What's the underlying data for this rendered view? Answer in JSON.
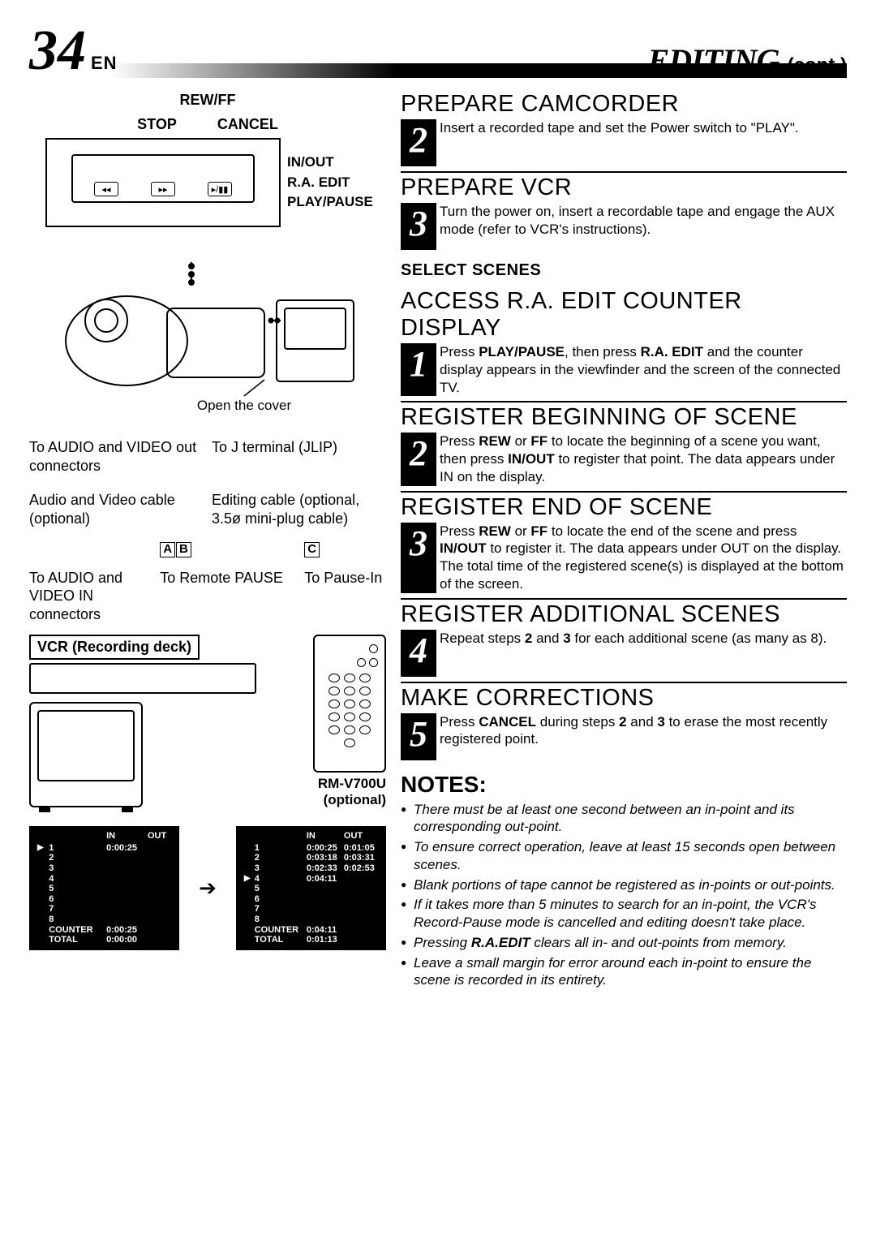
{
  "header": {
    "page_num": "34",
    "lang": "EN",
    "title": "EDITING",
    "cont": "(cont.)"
  },
  "remote": {
    "top_label": "REW/FF",
    "stop": "STOP",
    "cancel": "CANCEL",
    "inout": "IN/OUT",
    "raedit": "R.A. EDIT",
    "playpause": "PLAY/PAUSE"
  },
  "diagram": {
    "open_cover": "Open the cover",
    "audio_video_out": "To AUDIO and VIDEO out connectors",
    "j_terminal": "To J terminal (JLIP)",
    "av_cable": "Audio and Video cable (optional)",
    "editing_cable": "Editing cable (optional, 3.5ø mini-plug cable)",
    "letters": {
      "a": "A",
      "b": "B",
      "c": "C"
    },
    "audio_video_in": "To AUDIO and VIDEO IN connectors",
    "to_remote_pause": "To Remote PAUSE",
    "to_pause_in": "To Pause-In",
    "vcr": "VCR (Recording deck)",
    "rm_model": "RM-V700U",
    "optional": "(optional)"
  },
  "counter_left": {
    "in": "IN",
    "out": "OUT",
    "rows": [
      {
        "n": "1",
        "in": "0:00:25",
        "out": ""
      },
      {
        "n": "2"
      },
      {
        "n": "3"
      },
      {
        "n": "4"
      },
      {
        "n": "5"
      },
      {
        "n": "6"
      },
      {
        "n": "7"
      },
      {
        "n": "8"
      }
    ],
    "counter_label": "COUNTER",
    "counter": "0:00:25",
    "total_label": "TOTAL",
    "total": "0:00:00",
    "pointer_row": 0
  },
  "counter_right": {
    "in": "IN",
    "out": "OUT",
    "rows": [
      {
        "n": "1",
        "in": "0:00:25",
        "out": "0:01:05"
      },
      {
        "n": "2",
        "in": "0:03:18",
        "out": "0:03:31"
      },
      {
        "n": "3",
        "in": "0:02:33",
        "out": "0:02:53"
      },
      {
        "n": "4",
        "in": "0:04:11",
        "out": ""
      },
      {
        "n": "5"
      },
      {
        "n": "6"
      },
      {
        "n": "7"
      },
      {
        "n": "8"
      }
    ],
    "counter_label": "COUNTER",
    "counter": "0:04:11",
    "total_label": "TOTAL",
    "total": "0:01:13",
    "pointer_row": 3
  },
  "steps_a": [
    {
      "n": "2",
      "title": "PREPARE CAMCORDER",
      "text": "Insert a recorded tape and set the Power switch to \"PLAY\"."
    },
    {
      "n": "3",
      "title": "PREPARE VCR",
      "text": "Turn the power on, insert a recordable tape and engage the AUX mode (refer to VCR's instructions)."
    }
  ],
  "select_scenes": "SELECT SCENES",
  "steps_b": [
    {
      "n": "1",
      "title": "ACCESS R.A. EDIT COUNTER DISPLAY",
      "text": "Press <b>PLAY/PAUSE</b>, then press <b>R.A. EDIT</b> and the counter display appears in the viewfinder and the screen of the connected TV."
    },
    {
      "n": "2",
      "title": "REGISTER BEGINNING OF SCENE",
      "text": "Press <b>REW</b> or <b>FF</b> to locate the beginning of a scene you want, then press <b>IN/OUT</b> to register that point. The data appears under IN on the display."
    },
    {
      "n": "3",
      "title": "REGISTER END OF SCENE",
      "text": "Press <b>REW</b> or <b>FF</b> to locate the end of the scene and press <b>IN/OUT</b> to register it. The data appears under OUT on the display. The total time of the registered scene(s) is displayed at the bottom of the screen."
    },
    {
      "n": "4",
      "title": "REGISTER ADDITIONAL SCENES",
      "text": "Repeat steps <b>2</b> and <b>3</b> for each additional scene (as many as 8)."
    },
    {
      "n": "5",
      "title": "MAKE CORRECTIONS",
      "text": "Press <b>CANCEL</b> during steps <b>2</b> and <b>3</b> to erase the most recently registered point."
    }
  ],
  "notes_hd": "NOTES:",
  "notes": [
    "There must be at least one second between an in-point and its corresponding out-point.",
    "To ensure correct operation, leave at least 15 seconds open between scenes.",
    "Blank portions of tape cannot be registered as in-points or out-points.",
    "If it takes more than 5 minutes to search for an in-point, the VCR's Record-Pause mode is cancelled and editing doesn't take place.",
    "Pressing <b>R.A.EDIT</b> clears all in- and out-points from memory.",
    "Leave a small margin for error around each in-point to ensure the scene is recorded in its entirety."
  ],
  "colors": {
    "bg": "#ffffff",
    "ink": "#000000"
  }
}
